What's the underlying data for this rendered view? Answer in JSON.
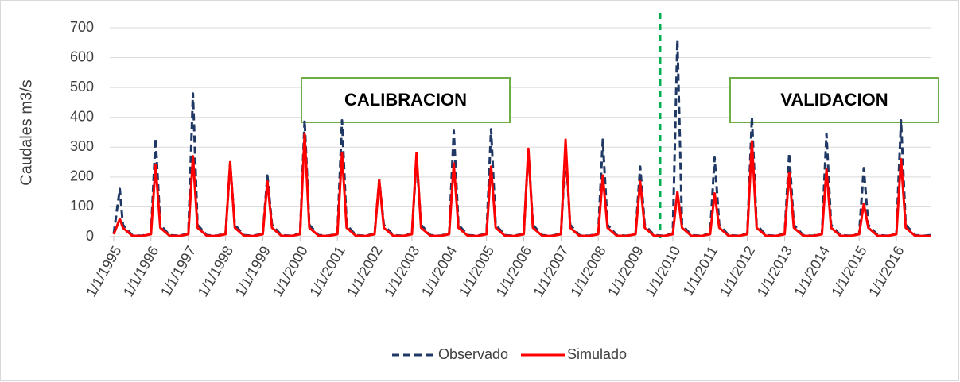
{
  "chart_data": {
    "type": "line",
    "y_label": "Caudales m3/s",
    "annotations": [
      "CALIBRACION",
      "VALIDACION"
    ],
    "legend": "bottom",
    "grid": true,
    "ylim": [
      0,
      700
    ],
    "yticks": [
      0,
      100,
      200,
      300,
      400,
      500,
      600,
      700
    ],
    "xlim": [
      "1/1/1995",
      "12/1/2016"
    ],
    "xticks": [
      "1/1/1995",
      "1/1/1996",
      "1/1/1997",
      "1/1/1998",
      "1/1/1999",
      "1/1/2000",
      "1/1/2001",
      "1/1/2002",
      "1/1/2003",
      "1/1/2004",
      "1/1/2005",
      "1/1/2006",
      "1/1/2007",
      "1/1/2008",
      "1/1/2009",
      "1/1/2010",
      "1/1/2011",
      "1/1/2012",
      "1/1/2013",
      "1/1/2014",
      "1/1/2015",
      "1/1/2016"
    ],
    "x": [
      "1/1/1995",
      "3/1/1995",
      "4/1/1995",
      "7/1/1995",
      "10/1/1995",
      "1/1/1996",
      "2/15/1996",
      "4/1/1996",
      "7/1/1996",
      "10/1/1996",
      "1/1/1997",
      "2/15/1997",
      "4/1/1997",
      "7/1/1997",
      "10/1/1997",
      "1/1/1998",
      "2/15/1998",
      "4/1/1998",
      "7/1/1998",
      "10/1/1998",
      "1/1/1999",
      "2/15/1999",
      "4/1/1999",
      "7/1/1999",
      "10/1/1999",
      "1/1/2000",
      "2/15/2000",
      "4/1/2000",
      "7/1/2000",
      "10/1/2000",
      "1/1/2001",
      "2/15/2001",
      "4/1/2001",
      "7/1/2001",
      "10/1/2001",
      "1/1/2002",
      "2/15/2002",
      "4/1/2002",
      "7/1/2002",
      "10/1/2002",
      "1/1/2003",
      "2/15/2003",
      "4/1/2003",
      "7/1/2003",
      "10/1/2003",
      "1/1/2004",
      "2/15/2004",
      "4/1/2004",
      "7/1/2004",
      "10/1/2004",
      "1/1/2005",
      "2/15/2005",
      "4/1/2005",
      "7/1/2005",
      "10/1/2005",
      "1/1/2006",
      "2/15/2006",
      "4/1/2006",
      "7/1/2006",
      "10/1/2006",
      "1/1/2007",
      "2/15/2007",
      "4/1/2007",
      "7/1/2007",
      "10/1/2007",
      "1/1/2008",
      "2/15/2008",
      "4/1/2008",
      "7/1/2008",
      "10/1/2008",
      "1/1/2009",
      "2/15/2009",
      "4/1/2009",
      "7/1/2009",
      "10/1/2009",
      "1/1/2010",
      "2/15/2010",
      "4/1/2010",
      "7/1/2010",
      "10/1/2010",
      "1/1/2011",
      "2/15/2011",
      "4/1/2011",
      "7/1/2011",
      "10/1/2011",
      "1/1/2012",
      "2/15/2012",
      "4/1/2012",
      "7/1/2012",
      "10/1/2012",
      "1/1/2013",
      "2/15/2013",
      "4/1/2013",
      "7/1/2013",
      "10/1/2013",
      "1/1/2014",
      "2/15/2014",
      "4/1/2014",
      "7/1/2014",
      "10/1/2014",
      "1/1/2015",
      "2/15/2015",
      "4/1/2015",
      "7/1/2015",
      "10/1/2015",
      "1/1/2016",
      "2/15/2016",
      "4/1/2016",
      "7/1/2016",
      "10/1/2016",
      "12/1/2016"
    ],
    "series": [
      {
        "name": "Observado",
        "color": "#1f3864",
        "values": [
          10,
          160,
          40,
          5,
          3,
          10,
          330,
          40,
          5,
          3,
          10,
          480,
          40,
          5,
          3,
          10,
          245,
          40,
          5,
          3,
          10,
          205,
          40,
          5,
          3,
          10,
          390,
          40,
          5,
          3,
          10,
          390,
          40,
          5,
          3,
          10,
          190,
          40,
          5,
          3,
          10,
          260,
          40,
          5,
          3,
          10,
          355,
          40,
          5,
          3,
          10,
          360,
          40,
          5,
          3,
          10,
          290,
          40,
          5,
          3,
          10,
          290,
          40,
          5,
          3,
          10,
          325,
          40,
          5,
          3,
          10,
          235,
          40,
          5,
          3,
          10,
          660,
          40,
          5,
          3,
          10,
          265,
          40,
          5,
          3,
          10,
          400,
          40,
          5,
          3,
          10,
          280,
          40,
          5,
          3,
          10,
          345,
          40,
          5,
          3,
          10,
          230,
          40,
          5,
          3,
          10,
          390,
          40,
          5,
          3,
          5
        ]
      },
      {
        "name": "Simulado",
        "color": "#ff0000",
        "values": [
          8,
          60,
          30,
          3,
          2,
          8,
          240,
          30,
          3,
          2,
          8,
          270,
          30,
          3,
          2,
          8,
          250,
          30,
          3,
          2,
          8,
          185,
          30,
          3,
          2,
          8,
          345,
          30,
          3,
          2,
          8,
          280,
          30,
          3,
          2,
          8,
          190,
          30,
          3,
          2,
          8,
          280,
          30,
          3,
          2,
          8,
          245,
          30,
          3,
          2,
          8,
          235,
          30,
          3,
          2,
          8,
          295,
          30,
          3,
          2,
          8,
          325,
          30,
          3,
          2,
          8,
          205,
          30,
          3,
          2,
          8,
          185,
          30,
          3,
          2,
          8,
          150,
          30,
          3,
          2,
          8,
          145,
          30,
          3,
          2,
          8,
          320,
          30,
          3,
          2,
          8,
          215,
          30,
          3,
          2,
          8,
          225,
          30,
          3,
          2,
          8,
          110,
          30,
          3,
          2,
          8,
          260,
          30,
          3,
          2,
          2
        ]
      }
    ]
  }
}
